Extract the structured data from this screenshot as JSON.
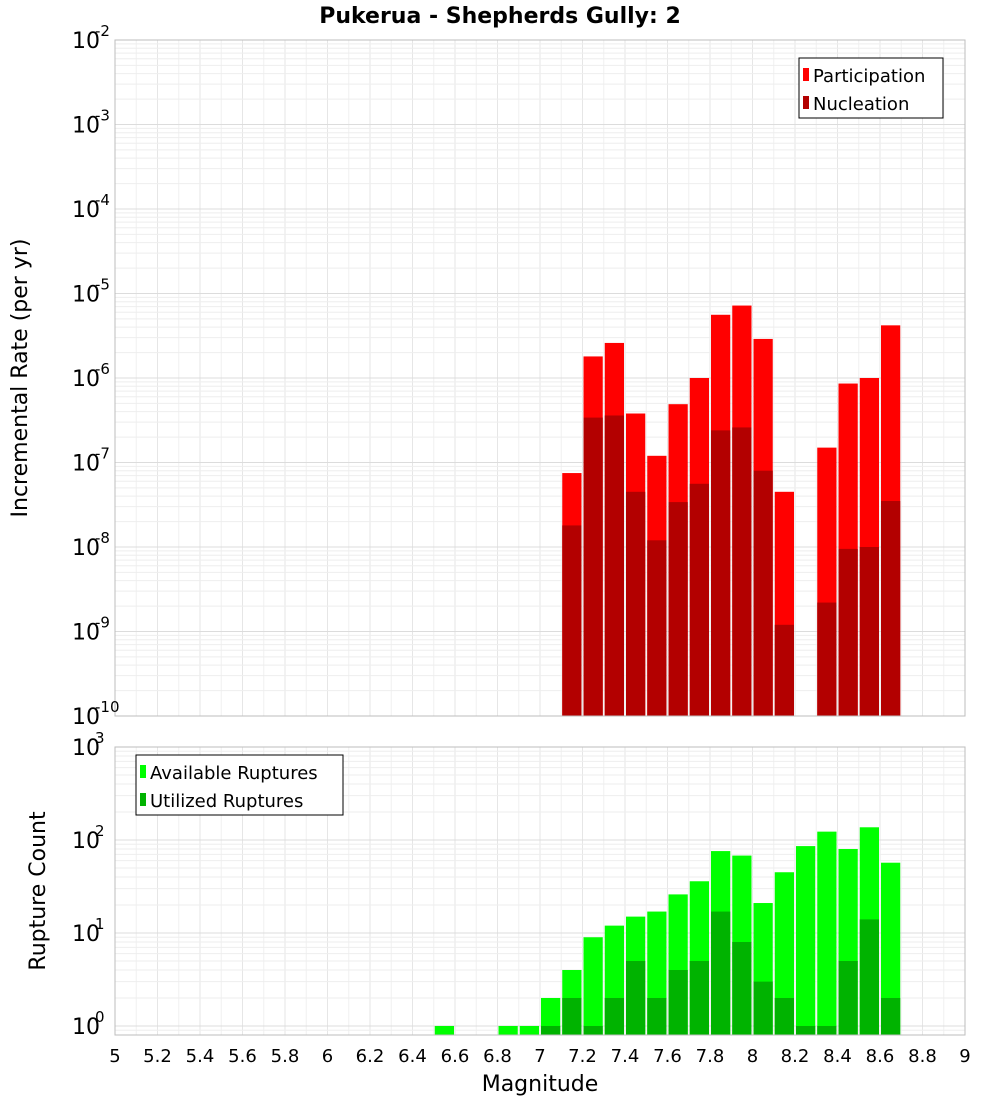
{
  "chart_data": [
    {
      "type": "bar",
      "title": "Pukerua - Shepherds Gully: 2",
      "xlabel": "Magnitude",
      "ylabel": "Incremental Rate (per yr)",
      "yscale": "log",
      "xlim": [
        5,
        9
      ],
      "ylim": [
        1e-10,
        0.01
      ],
      "y_tick_exponents": [
        -10,
        -9,
        -8,
        -7,
        -6,
        -5,
        -4,
        -3,
        -2
      ],
      "grid": true,
      "legend_position": "top-right",
      "overlay": true,
      "bar_width": 0.1,
      "x": [
        7.15,
        7.25,
        7.35,
        7.45,
        7.55,
        7.65,
        7.75,
        7.85,
        7.95,
        8.05,
        8.15,
        8.35,
        8.45,
        8.55,
        8.65
      ],
      "series": [
        {
          "name": "Participation",
          "color": "#ff0000",
          "values": [
            7.5e-08,
            1.8e-06,
            2.6e-06,
            3.8e-07,
            1.2e-07,
            4.9e-07,
            1e-06,
            5.6e-06,
            7.2e-06,
            2.9e-06,
            4.5e-08,
            1.5e-07,
            8.6e-07,
            1e-06,
            4.2e-06
          ]
        },
        {
          "name": "Nucleation",
          "color": "#b30000",
          "values": [
            1.8e-08,
            3.4e-07,
            3.6e-07,
            4.5e-08,
            1.2e-08,
            3.4e-08,
            5.6e-08,
            2.4e-07,
            2.6e-07,
            8e-08,
            1.2e-09,
            2.2e-09,
            9.5e-09,
            1e-08,
            3.5e-08
          ]
        }
      ]
    },
    {
      "type": "bar",
      "xlabel": "Magnitude",
      "ylabel": "Rupture Count",
      "yscale": "log",
      "xlim": [
        5,
        9
      ],
      "ylim": [
        0.8,
        1000
      ],
      "y_tick_exponents": [
        0,
        1,
        2,
        3
      ],
      "x_ticks": [
        "5",
        "5.2",
        "5.4",
        "5.6",
        "5.8",
        "6",
        "6.2",
        "6.4",
        "6.6",
        "6.8",
        "7",
        "7.2",
        "7.4",
        "7.6",
        "7.8",
        "8",
        "8.2",
        "8.4",
        "8.6",
        "8.8",
        "9"
      ],
      "grid": true,
      "legend_position": "top-left",
      "overlay": true,
      "bar_width": 0.1,
      "x": [
        6.55,
        6.85,
        6.95,
        7.05,
        7.15,
        7.25,
        7.35,
        7.45,
        7.55,
        7.65,
        7.75,
        7.85,
        7.95,
        8.05,
        8.15,
        8.25,
        8.35,
        8.45,
        8.55,
        8.65
      ],
      "series": [
        {
          "name": "Available Ruptures",
          "color": "#00ff00",
          "values": [
            1,
            1,
            1,
            2,
            4,
            9,
            12,
            15,
            17,
            26,
            36,
            76,
            68,
            21,
            45,
            86,
            123,
            80,
            137,
            57
          ]
        },
        {
          "name": "Utilized Ruptures",
          "color": "#00b300",
          "values": [
            0,
            0,
            0,
            1,
            2,
            1,
            2,
            5,
            2,
            4,
            5,
            17,
            8,
            3,
            2,
            1,
            1,
            5,
            14,
            2
          ]
        }
      ]
    }
  ]
}
